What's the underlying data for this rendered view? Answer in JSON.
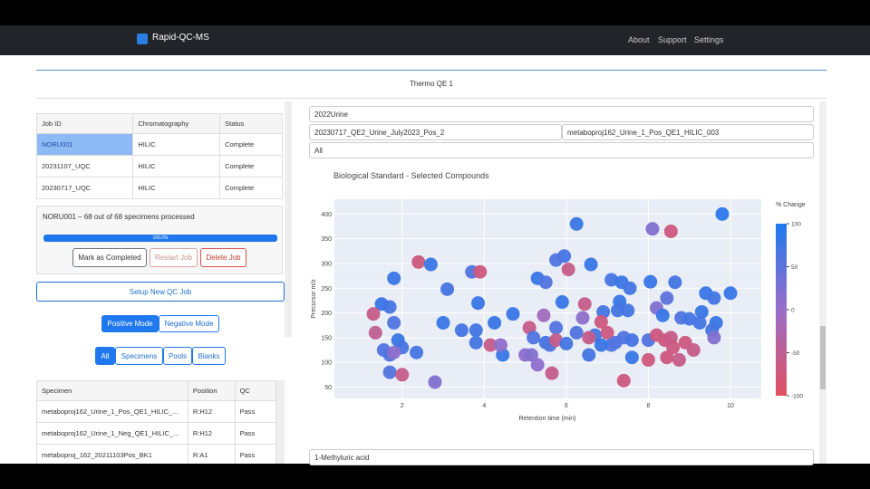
{
  "navbar": {
    "brand": "Rapid-QC-MS",
    "links": [
      "About",
      "Support",
      "Settings"
    ]
  },
  "instrument": "Thermo QE 1",
  "jobs_table": {
    "headers": [
      "Job ID",
      "Chromatography",
      "Status"
    ],
    "rows": [
      [
        "NORU001",
        "HILIC",
        "Complete"
      ],
      [
        "20231107_UQC",
        "HILIC",
        "Complete"
      ],
      [
        "20230717_UQC",
        "HILIC",
        "Complete"
      ]
    ]
  },
  "job_status": "NORU001 – 68 out of 68 specimens processed",
  "progress": {
    "value": 100,
    "label": "100.0%"
  },
  "job_buttons": [
    "Mark as Completed",
    "Restart Job",
    "Delete Job"
  ],
  "setup_button": "Setup New QC Job",
  "modes": [
    "Positive Mode",
    "Negative Mode"
  ],
  "sample_filters": [
    "All",
    "Specimens",
    "Pools",
    "Blanks"
  ],
  "specimen_table": {
    "headers": [
      "Specimen",
      "Position",
      "QC"
    ],
    "rows": [
      [
        "metaboproj162_Urine_1_Pos_QE1_HILIC_...",
        "R:H12",
        "Pass"
      ],
      [
        "metaboproj162_Urine_1_Neg_QE1_HILIC_...",
        "R:H12",
        "Pass"
      ],
      [
        "metaboproj_162_20211103Pos_BK1",
        "R:A1",
        "Pass"
      ]
    ]
  },
  "dropdowns": {
    "study": "2022Urine",
    "runs": [
      "20230717_QE2_Urine_July2023_Pos_2",
      "metaboproj162_Urine_1_Pos_QE1_HILIC_003"
    ],
    "filter": "All",
    "compound": "1-Methyluric acid"
  },
  "chart_data": {
    "type": "scatter",
    "title": "Biological Standard - Selected Compounds",
    "xlabel": "Retention time (min)",
    "ylabel": "Precursor m/z",
    "x": [
      6.25,
      9.8,
      8.55,
      8.1,
      5.95,
      5.75,
      6.05,
      6.6,
      2.4,
      2.7,
      3.7,
      3.9,
      1.8,
      7.1,
      7.35,
      7.55,
      8.05,
      8.65,
      3.1,
      5.3,
      5.5,
      9.4,
      9.6,
      10.0,
      1.5,
      1.7,
      1.3,
      3.85,
      5.9,
      6.45,
      7.3,
      8.45,
      8.2,
      7.25,
      7.5,
      4.7,
      5.45,
      6.9,
      6.85,
      6.4,
      8.35,
      8.8,
      9.0,
      9.3,
      9.25,
      9.65,
      9.55,
      3.0,
      3.45,
      3.8,
      4.25,
      5.1,
      5.75,
      6.25,
      6.7,
      6.55,
      7.0,
      7.4,
      8.0,
      8.2,
      8.4,
      8.55,
      7.1,
      7.6,
      1.8,
      1.35,
      1.9,
      2.0,
      1.7,
      1.55,
      1.8,
      3.8,
      4.15,
      4.45,
      4.4,
      5.0,
      5.15,
      5.5,
      5.6,
      5.75,
      6.55,
      6.85,
      7.2,
      7.6,
      8.0,
      8.75,
      8.6,
      8.9,
      8.45,
      9.1,
      1.7,
      2.0,
      2.8,
      5.3,
      5.65,
      7.4,
      2.35,
      6.0,
      9.6,
      5.2
    ],
    "y": [
      380,
      400,
      365,
      370,
      315,
      307,
      288,
      298,
      303,
      298,
      283,
      283,
      270,
      267,
      262,
      250,
      263,
      262,
      248,
      270,
      262,
      240,
      230,
      240,
      218,
      212,
      198,
      220,
      222,
      218,
      223,
      230,
      210,
      205,
      205,
      198,
      195,
      202,
      182,
      190,
      195,
      190,
      188,
      202,
      180,
      180,
      165,
      180,
      165,
      165,
      180,
      170,
      170,
      160,
      155,
      150,
      160,
      150,
      145,
      155,
      145,
      150,
      135,
      145,
      180,
      160,
      145,
      130,
      115,
      125,
      120,
      140,
      135,
      115,
      135,
      115,
      115,
      140,
      135,
      145,
      115,
      135,
      140,
      110,
      105,
      105,
      130,
      140,
      110,
      125,
      80,
      75,
      60,
      95,
      78,
      63,
      120,
      138,
      150,
      150
    ],
    "color_values": [
      80,
      90,
      -70,
      20,
      70,
      60,
      -60,
      80,
      -70,
      80,
      60,
      -70,
      80,
      70,
      80,
      70,
      80,
      70,
      70,
      80,
      60,
      80,
      70,
      80,
      80,
      70,
      -60,
      80,
      80,
      -60,
      80,
      50,
      20,
      70,
      70,
      80,
      -10,
      70,
      -70,
      10,
      80,
      60,
      70,
      80,
      70,
      80,
      70,
      80,
      70,
      70,
      80,
      -60,
      60,
      60,
      70,
      -60,
      -70,
      60,
      60,
      -70,
      -70,
      -60,
      60,
      70,
      60,
      -50,
      80,
      70,
      60,
      60,
      10,
      70,
      -60,
      80,
      10,
      10,
      20,
      70,
      60,
      -60,
      70,
      80,
      60,
      80,
      -70,
      -60,
      -70,
      -70,
      -70,
      -60,
      60,
      -60,
      20,
      10,
      -60,
      -70,
      70,
      70,
      20,
      60
    ],
    "xlim": [
      0.35,
      10.75
    ],
    "ylim": [
      27,
      430
    ],
    "xticks": [
      2,
      4,
      6,
      8,
      10
    ],
    "yticks": [
      50,
      100,
      150,
      200,
      250,
      300,
      350,
      400
    ],
    "grid": true,
    "colorbar": {
      "title": "% Change",
      "lim": [
        -100,
        100
      ],
      "ticks": [
        -100,
        -50,
        0,
        50,
        100
      ],
      "colors": [
        "#e1505f",
        "#9a6ec8",
        "#1f78ee"
      ]
    }
  }
}
